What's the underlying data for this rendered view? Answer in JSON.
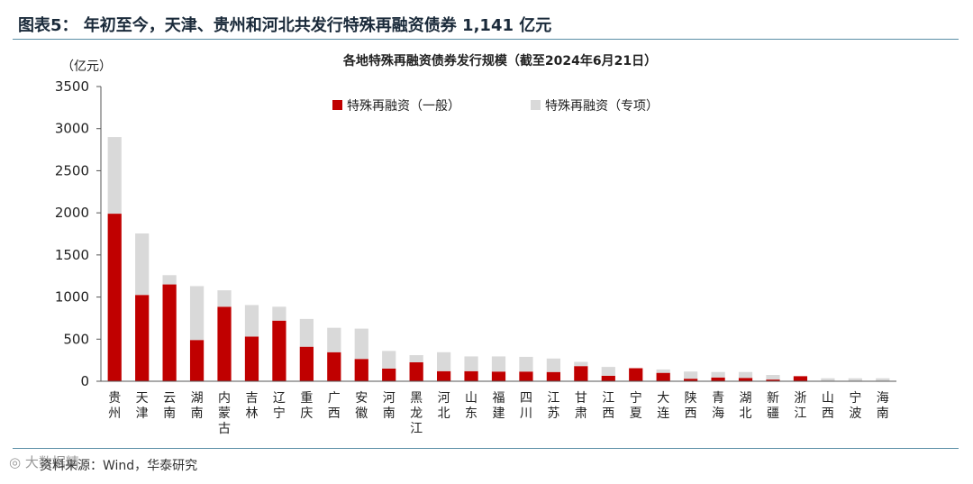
{
  "figure": {
    "title": "图表5：  年初至今，天津、贵州和河北共发行特殊再融资债券 1,141 亿元",
    "source": "资料来源：Wind，华泰研究",
    "watermark": "大数据精"
  },
  "colors": {
    "general": "#c00000",
    "special": "#d9d9d9",
    "rule": "#5b8ea6"
  },
  "chart_data": {
    "type": "bar",
    "stacked": true,
    "title": "各地特殊再融资债券发行规模（截至2024年6月21日）",
    "ylabel": "（亿元）",
    "ylim": [
      0,
      3500
    ],
    "yticks": [
      0,
      500,
      1000,
      1500,
      2000,
      2500,
      3000,
      3500
    ],
    "legend_position": "top",
    "grid": false,
    "categories": [
      "贵州",
      "天津",
      "云南",
      "湖南",
      "内蒙古",
      "吉林",
      "辽宁",
      "重庆",
      "广西",
      "安徽",
      "河南",
      "黑龙江",
      "河北",
      "山东",
      "福建",
      "四川",
      "江苏",
      "甘肃",
      "江西",
      "宁夏",
      "大连",
      "陕西",
      "青海",
      "湖北",
      "新疆",
      "浙江",
      "山西",
      "宁波",
      "海南"
    ],
    "series": [
      {
        "name": "特殊再融资（一般）",
        "color": "#c00000",
        "values": [
          1990,
          1025,
          1150,
          490,
          885,
          530,
          720,
          410,
          345,
          265,
          150,
          225,
          120,
          120,
          115,
          115,
          110,
          180,
          65,
          155,
          100,
          30,
          45,
          40,
          20,
          60,
          0,
          0,
          0
        ]
      },
      {
        "name": "特殊再融资（专项）",
        "color": "#d9d9d9",
        "values": [
          910,
          730,
          110,
          640,
          195,
          375,
          165,
          330,
          290,
          360,
          210,
          85,
          225,
          175,
          180,
          175,
          160,
          50,
          105,
          0,
          40,
          85,
          65,
          70,
          55,
          0,
          35,
          35,
          35
        ]
      }
    ]
  }
}
